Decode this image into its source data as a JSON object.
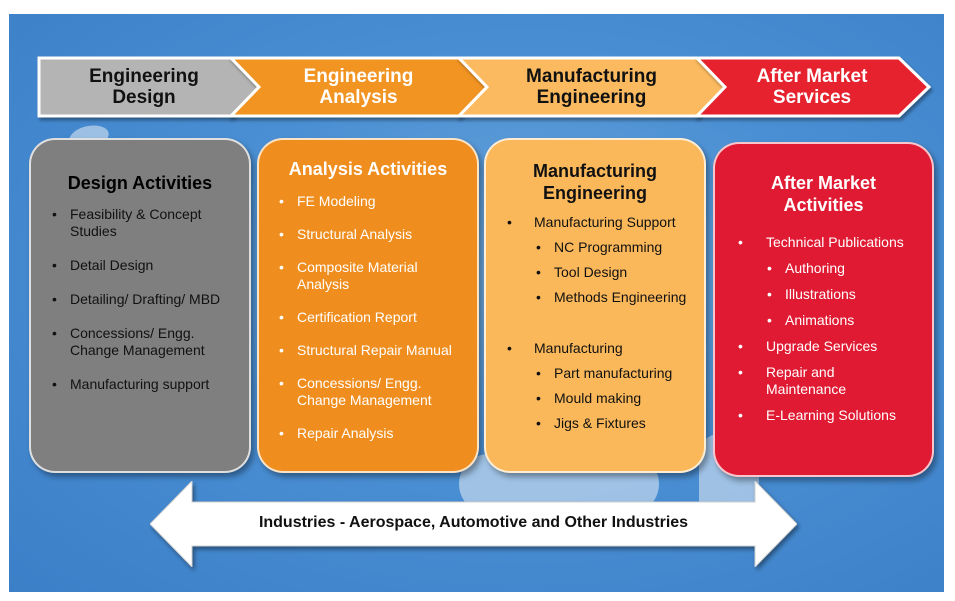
{
  "stages": [
    {
      "label": "Engineering\nDesign"
    },
    {
      "label": "Engineering\nAnalysis"
    },
    {
      "label": "Manufacturing\nEngineering"
    },
    {
      "label": "After Market\nServices"
    }
  ],
  "design": {
    "title": "Design Activities",
    "items": [
      "Feasibility & Concept Studies",
      "Detail Design",
      "Detailing/ Drafting/ MBD",
      "Concessions/ Engg. Change Management",
      "Manufacturing support"
    ]
  },
  "analysis": {
    "title": "Analysis Activities",
    "items": [
      "FE Modeling",
      "Structural Analysis",
      "Composite Material Analysis",
      "Certification  Report",
      "Structural Repair Manual",
      "Concessions/ Engg. Change Management",
      "Repair Analysis"
    ]
  },
  "manufacturing": {
    "title": "Manufacturing Engineering",
    "support": "Manufacturing Support",
    "support_items": [
      "NC Programming",
      "Tool Design",
      "Methods Engineering"
    ],
    "mfg": "Manufacturing",
    "mfg_items": [
      "Part manufacturing",
      "Mould making",
      "Jigs & Fixtures"
    ]
  },
  "aftermarket": {
    "title": "After Market Activities",
    "tech": "Technical Publications",
    "tech_items": [
      "Authoring",
      "Illustrations",
      "Animations"
    ],
    "items": [
      "Upgrade Services",
      "Repair and Maintenance",
      "E-Learning Solutions"
    ]
  },
  "footer": "Industries - Aerospace, Automotive and Other Industries",
  "colors": {
    "design": "#808080",
    "analysis": "#f0901f",
    "manufacturing": "#fbb85a",
    "aftermarket": "#e01b33",
    "chevron_design": "#b4b4b4",
    "chevron_analysis": "#f29422",
    "chevron_mfg": "#fbba5e",
    "chevron_aftermarket": "#e5222f"
  }
}
